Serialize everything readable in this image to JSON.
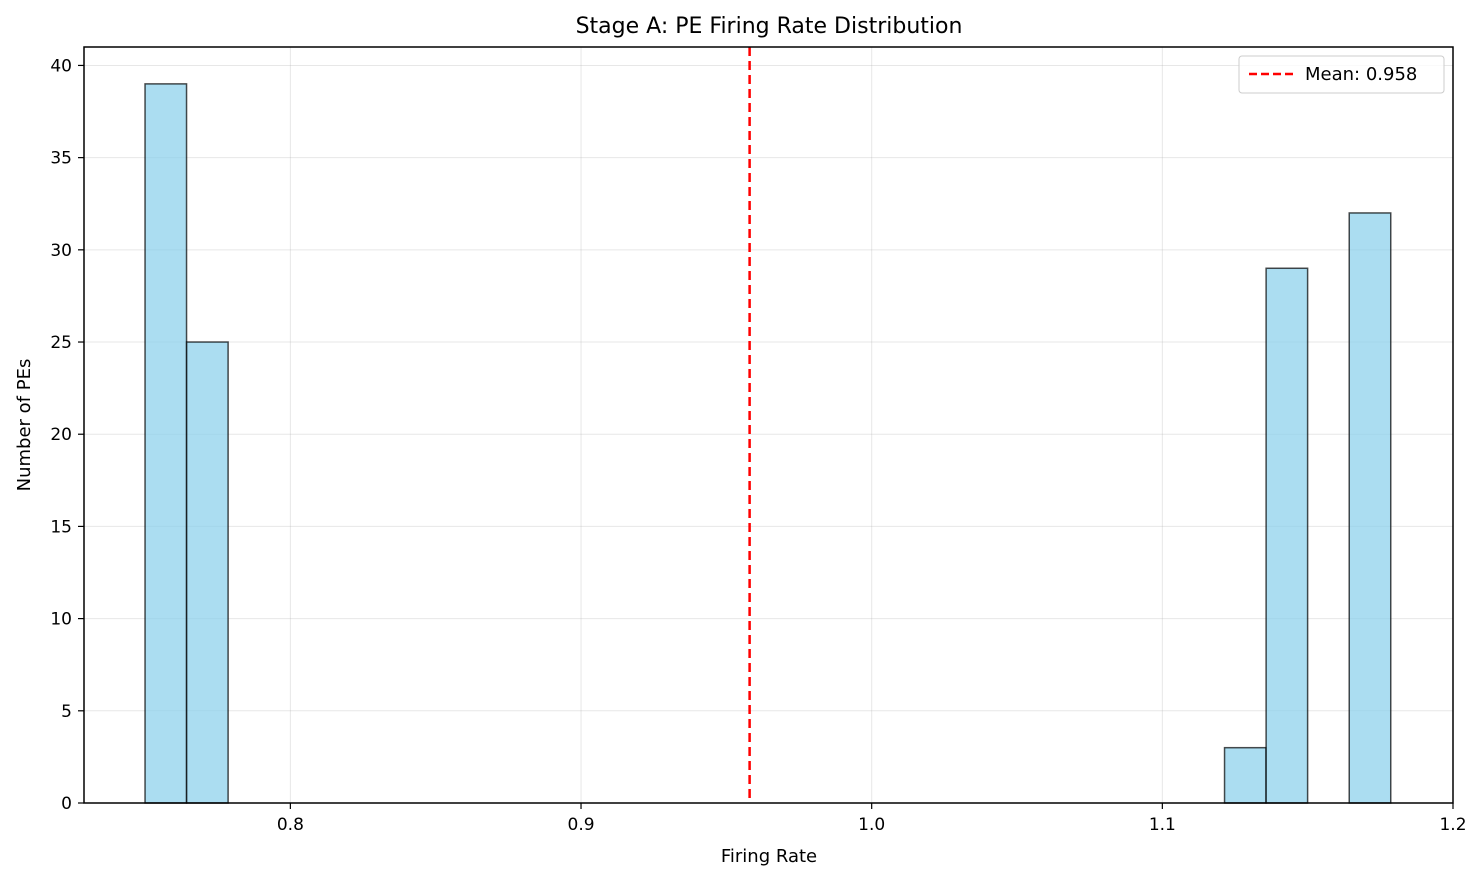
{
  "chart_data": {
    "type": "bar",
    "title": "Stage A: PE Firing Rate Distribution",
    "xlabel": "Firing Rate",
    "ylabel": "Number of PEs",
    "xlim": [
      0.729,
      1.2
    ],
    "ylim": [
      0,
      41
    ],
    "xticks": [
      "0.8",
      "0.9",
      "1.0",
      "1.1",
      "1.2"
    ],
    "yticks": [
      "0",
      "5",
      "10",
      "15",
      "20",
      "25",
      "30",
      "35",
      "40"
    ],
    "grid": true,
    "legend_position": "top-right",
    "bin_width": 0.01428,
    "bins": [
      {
        "start": 0.75,
        "count": 39
      },
      {
        "start": 0.7643,
        "count": 25
      },
      {
        "start": 1.1214,
        "count": 3
      },
      {
        "start": 1.1357,
        "count": 29
      },
      {
        "start": 1.1643,
        "count": 32
      }
    ],
    "mean_line": {
      "x": 0.958,
      "label": "Mean: 0.958",
      "color": "#ff0000",
      "style": "dashed"
    },
    "colors": {
      "bar_fill": "#87ceeb",
      "bar_edge": "#000000"
    }
  }
}
